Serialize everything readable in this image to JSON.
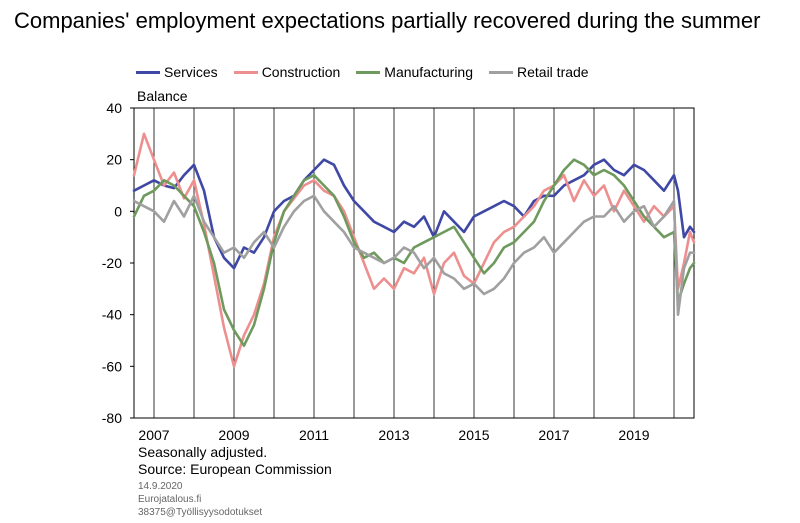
{
  "title": "Companies' employment expectations partially recovered during the summer",
  "unit_label": "Balance",
  "notes": [
    "Seasonally adjusted.",
    "Source: European Commission"
  ],
  "meta": [
    "14.9.2020",
    "Eurojatalous.fi",
    "38375@Työllisyysodotukset"
  ],
  "chart_data": {
    "type": "line",
    "title": "Companies' employment expectations partially recovered during the summer",
    "ylabel": "Balance",
    "xlabel": "",
    "ylim": [
      -80,
      40
    ],
    "yticks": [
      -80,
      -60,
      -40,
      -20,
      0,
      20,
      40
    ],
    "xlim": [
      2006.5,
      2020.5
    ],
    "xticks": [
      2007,
      2009,
      2011,
      2013,
      2015,
      2017,
      2019
    ],
    "grid": "vertical at year boundaries",
    "legend_position": "top",
    "series": [
      {
        "name": "Services",
        "color": "#3f48a5",
        "x": [
          2006.5,
          2006.75,
          2007,
          2007.25,
          2007.5,
          2007.75,
          2008,
          2008.25,
          2008.5,
          2008.75,
          2009,
          2009.25,
          2009.5,
          2009.75,
          2010,
          2010.25,
          2010.5,
          2010.75,
          2011,
          2011.25,
          2011.5,
          2011.75,
          2012,
          2012.25,
          2012.5,
          2012.75,
          2013,
          2013.25,
          2013.5,
          2013.75,
          2014,
          2014.25,
          2014.5,
          2014.75,
          2015,
          2015.25,
          2015.5,
          2015.75,
          2016,
          2016.25,
          2016.5,
          2016.75,
          2017,
          2017.25,
          2017.5,
          2017.75,
          2018,
          2018.25,
          2018.5,
          2018.75,
          2019,
          2019.25,
          2019.5,
          2019.75,
          2020,
          2020.1,
          2020.25,
          2020.4,
          2020.5
        ],
        "y": [
          8,
          10,
          12,
          10,
          9,
          14,
          18,
          8,
          -10,
          -18,
          -22,
          -14,
          -16,
          -10,
          0,
          4,
          6,
          12,
          16,
          20,
          18,
          10,
          4,
          0,
          -4,
          -6,
          -8,
          -4,
          -6,
          -2,
          -10,
          0,
          -4,
          -8,
          -2,
          0,
          2,
          4,
          2,
          -2,
          4,
          6,
          6,
          10,
          12,
          14,
          18,
          20,
          16,
          14,
          18,
          16,
          12,
          8,
          14,
          8,
          -10,
          -6,
          -8
        ]
      },
      {
        "name": "Construction",
        "color": "#ee8f8f",
        "x": [
          2006.5,
          2006.75,
          2007,
          2007.25,
          2007.5,
          2007.75,
          2008,
          2008.25,
          2008.5,
          2008.75,
          2009,
          2009.25,
          2009.5,
          2009.75,
          2010,
          2010.25,
          2010.5,
          2010.75,
          2011,
          2011.25,
          2011.5,
          2011.75,
          2012,
          2012.25,
          2012.5,
          2012.75,
          2013,
          2013.25,
          2013.5,
          2013.75,
          2014,
          2014.25,
          2014.5,
          2014.75,
          2015,
          2015.25,
          2015.5,
          2015.75,
          2016,
          2016.25,
          2016.5,
          2016.75,
          2017,
          2017.25,
          2017.5,
          2017.75,
          2018,
          2018.25,
          2018.5,
          2018.75,
          2019,
          2019.25,
          2019.5,
          2019.75,
          2020,
          2020.1,
          2020.25,
          2020.4,
          2020.5
        ],
        "y": [
          14,
          30,
          20,
          10,
          15,
          5,
          12,
          -5,
          -25,
          -45,
          -60,
          -48,
          -40,
          -28,
          -10,
          0,
          5,
          10,
          12,
          8,
          6,
          0,
          -10,
          -20,
          -30,
          -26,
          -30,
          -22,
          -24,
          -18,
          -32,
          -20,
          -16,
          -25,
          -28,
          -20,
          -12,
          -8,
          -6,
          -2,
          2,
          8,
          10,
          14,
          4,
          12,
          6,
          10,
          0,
          8,
          2,
          -4,
          2,
          -2,
          2,
          -30,
          -20,
          -8,
          -12
        ]
      },
      {
        "name": "Manufacturing",
        "color": "#6e9a5e",
        "x": [
          2006.5,
          2006.75,
          2007,
          2007.25,
          2007.5,
          2007.75,
          2008,
          2008.25,
          2008.5,
          2008.75,
          2009,
          2009.25,
          2009.5,
          2009.75,
          2010,
          2010.25,
          2010.5,
          2010.75,
          2011,
          2011.25,
          2011.5,
          2011.75,
          2012,
          2012.25,
          2012.5,
          2012.75,
          2013,
          2013.25,
          2013.5,
          2013.75,
          2014,
          2014.25,
          2014.5,
          2014.75,
          2015,
          2015.25,
          2015.5,
          2015.75,
          2016,
          2016.25,
          2016.5,
          2016.75,
          2017,
          2017.25,
          2017.5,
          2017.75,
          2018,
          2018.25,
          2018.5,
          2018.75,
          2019,
          2019.25,
          2019.5,
          2019.75,
          2020,
          2020.1,
          2020.25,
          2020.4,
          2020.5
        ],
        "y": [
          -2,
          6,
          8,
          12,
          10,
          6,
          2,
          -8,
          -20,
          -38,
          -46,
          -52,
          -44,
          -30,
          -12,
          0,
          6,
          12,
          14,
          10,
          6,
          -2,
          -12,
          -18,
          -16,
          -20,
          -18,
          -20,
          -14,
          -12,
          -10,
          -8,
          -6,
          -12,
          -18,
          -24,
          -20,
          -14,
          -12,
          -8,
          -4,
          4,
          10,
          16,
          20,
          18,
          14,
          16,
          14,
          10,
          4,
          -2,
          -6,
          -10,
          -8,
          -35,
          -28,
          -22,
          -20
        ]
      },
      {
        "name": "Retail trade",
        "color": "#a0a0a0",
        "x": [
          2006.5,
          2006.75,
          2007,
          2007.25,
          2007.5,
          2007.75,
          2008,
          2008.25,
          2008.5,
          2008.75,
          2009,
          2009.25,
          2009.5,
          2009.75,
          2010,
          2010.25,
          2010.5,
          2010.75,
          2011,
          2011.25,
          2011.5,
          2011.75,
          2012,
          2012.25,
          2012.5,
          2012.75,
          2013,
          2013.25,
          2013.5,
          2013.75,
          2014,
          2014.25,
          2014.5,
          2014.75,
          2015,
          2015.25,
          2015.5,
          2015.75,
          2016,
          2016.25,
          2016.5,
          2016.75,
          2017,
          2017.25,
          2017.5,
          2017.75,
          2018,
          2018.25,
          2018.5,
          2018.75,
          2019,
          2019.25,
          2019.5,
          2019.75,
          2020,
          2020.1,
          2020.25,
          2020.4,
          2020.5
        ],
        "y": [
          4,
          2,
          0,
          -4,
          4,
          -2,
          6,
          -4,
          -10,
          -16,
          -14,
          -18,
          -12,
          -8,
          -14,
          -6,
          0,
          4,
          6,
          0,
          -4,
          -8,
          -14,
          -16,
          -18,
          -20,
          -18,
          -14,
          -16,
          -22,
          -18,
          -24,
          -26,
          -30,
          -28,
          -32,
          -30,
          -26,
          -20,
          -16,
          -14,
          -10,
          -16,
          -12,
          -8,
          -4,
          -2,
          -2,
          2,
          -4,
          0,
          2,
          -6,
          -2,
          4,
          -40,
          -22,
          -16,
          -16
        ]
      }
    ]
  }
}
